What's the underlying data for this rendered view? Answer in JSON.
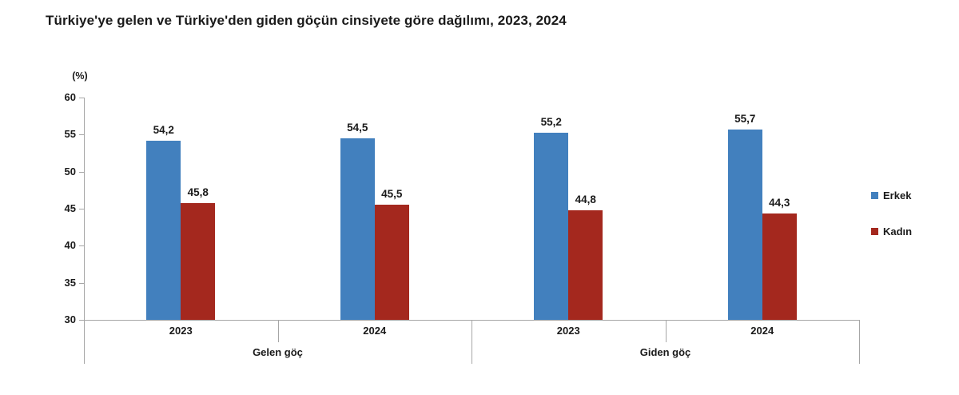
{
  "title": "Türkiye'ye gelen ve Türkiye'den giden göçün cinsiyete göre dağılımı, 2023, 2024",
  "chart_data": {
    "type": "bar",
    "title": "Türkiye'ye gelen ve Türkiye'den giden göçün cinsiyete göre dağılımı, 2023, 2024",
    "unit_label": "(%)",
    "ylim": [
      30,
      60
    ],
    "yticks": [
      30,
      35,
      40,
      45,
      50,
      55,
      60
    ],
    "grid": false,
    "legend_position": "right",
    "decimal_separator": ",",
    "axis_color": "#a6a6a6",
    "text_color": "#1a1a1a",
    "categories": [
      "2023",
      "2024",
      "2023",
      "2024"
    ],
    "group_labels": [
      "Gelen göç",
      "Giden göç"
    ],
    "series": [
      {
        "name": "Erkek",
        "color": "#4280be",
        "values": [
          54.2,
          54.5,
          55.2,
          55.7
        ]
      },
      {
        "name": "Kadın",
        "color": "#a4281e",
        "values": [
          45.8,
          45.5,
          44.8,
          44.3
        ]
      }
    ]
  }
}
